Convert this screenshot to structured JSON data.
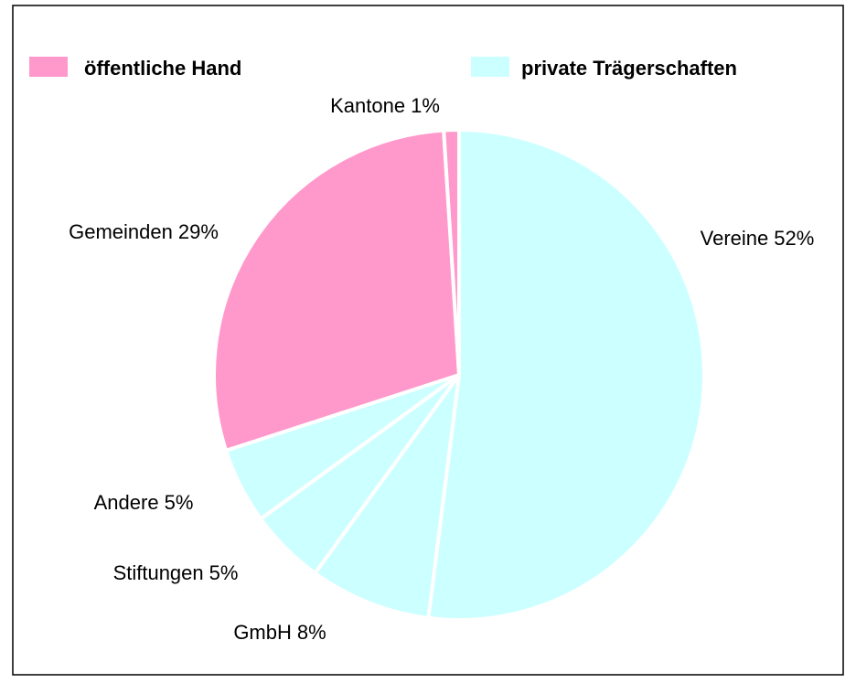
{
  "chart_data": {
    "type": "pie",
    "categories": [
      "Vereine",
      "GmbH",
      "Stiftungen",
      "Andere",
      "Gemeinden",
      "Kantone"
    ],
    "values": [
      52,
      8,
      5,
      5,
      29,
      1
    ],
    "value_labels": [
      "52%",
      "8%",
      "5%",
      "5%",
      "29%",
      "1%"
    ],
    "colors": [
      "#ccffff",
      "#ccffff",
      "#ccffff",
      "#ccffff",
      "#ff99cc",
      "#ff99cc"
    ],
    "legend": [
      {
        "name": "öffentliche Hand",
        "color": "#ff99cc"
      },
      {
        "name": "private Trägerschaften",
        "color": "#ccffff"
      }
    ]
  }
}
